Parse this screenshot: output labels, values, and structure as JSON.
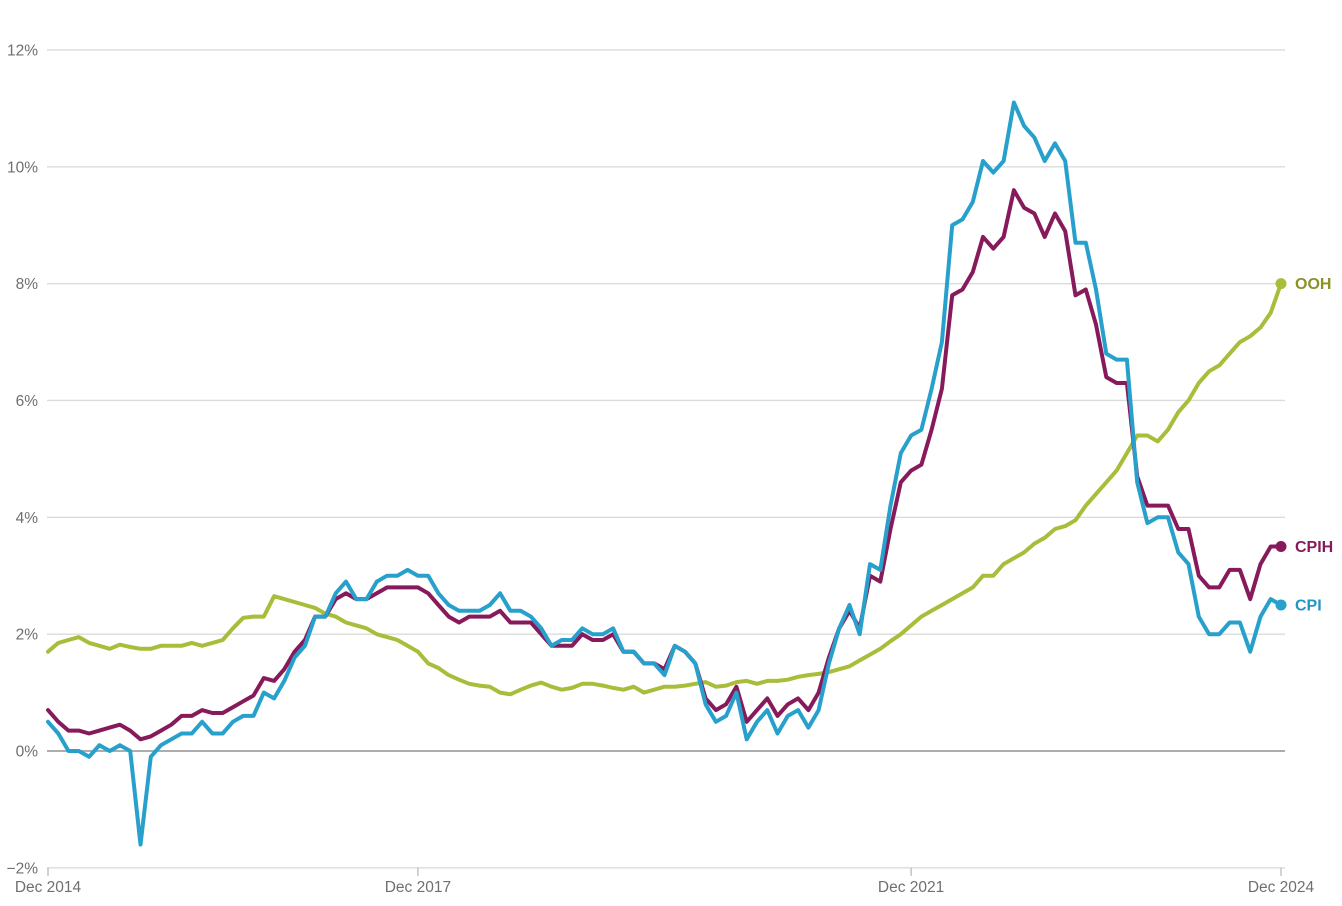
{
  "chart_data": {
    "type": "line",
    "title": "",
    "frequency": "monthly",
    "start_month": "Dec 2014",
    "end_month": "Dec 2024",
    "unit": "%",
    "x_axis": {
      "tick_labels": [
        "Dec 2014",
        "Dec 2017",
        "Dec 2021",
        "Dec 2024"
      ],
      "tick_month_index": [
        0,
        36,
        84,
        120
      ]
    },
    "y_axis": {
      "tick_labels": [
        "−2%",
        "0%",
        "2%",
        "4%",
        "6%",
        "8%",
        "10%",
        "12%"
      ],
      "tick_values": [
        -2,
        0,
        2,
        4,
        6,
        8,
        10,
        12
      ],
      "min": -2,
      "max": 12
    },
    "grid": {
      "line_color": "#dbdbdb",
      "zero_line_color": "#adadad",
      "tick_color": "#c2c2c2",
      "text_color": "#6f6f71",
      "horizontal_gridlines": true,
      "vertical_gridlines": false
    },
    "legend_position": "direct-labels-right",
    "series": [
      {
        "name": "OOH",
        "color": "#a8bd3a",
        "label_color": "#8c9123",
        "end_value": 8.0,
        "values": [
          1.7,
          1.85,
          1.9,
          1.95,
          1.85,
          1.8,
          1.75,
          1.82,
          1.78,
          1.75,
          1.75,
          1.8,
          1.8,
          1.8,
          1.85,
          1.8,
          1.85,
          1.9,
          2.1,
          2.28,
          2.3,
          2.3,
          2.65,
          2.6,
          2.55,
          2.5,
          2.45,
          2.35,
          2.3,
          2.2,
          2.15,
          2.1,
          2.0,
          1.95,
          1.9,
          1.8,
          1.7,
          1.5,
          1.42,
          1.3,
          1.22,
          1.15,
          1.12,
          1.1,
          1.0,
          0.97,
          1.05,
          1.12,
          1.17,
          1.1,
          1.05,
          1.08,
          1.15,
          1.15,
          1.12,
          1.08,
          1.05,
          1.1,
          1.0,
          1.05,
          1.1,
          1.1,
          1.12,
          1.15,
          1.18,
          1.1,
          1.12,
          1.18,
          1.2,
          1.15,
          1.2,
          1.2,
          1.22,
          1.27,
          1.3,
          1.32,
          1.35,
          1.4,
          1.45,
          1.55,
          1.65,
          1.75,
          1.88,
          2.0,
          2.15,
          2.3,
          2.4,
          2.5,
          2.6,
          2.7,
          2.8,
          3.0,
          3.0,
          3.2,
          3.3,
          3.4,
          3.55,
          3.65,
          3.8,
          3.85,
          3.95,
          4.2,
          4.4,
          4.6,
          4.8,
          5.1,
          5.4,
          5.4,
          5.3,
          5.5,
          5.8,
          6.0,
          6.3,
          6.5,
          6.6,
          6.8,
          7.0,
          7.1,
          7.25,
          7.5,
          8.0
        ]
      },
      {
        "name": "CPIH",
        "color": "#871a5b",
        "label_color": "#871a5b",
        "end_value": 3.5,
        "values": [
          0.7,
          0.5,
          0.35,
          0.35,
          0.3,
          0.35,
          0.4,
          0.45,
          0.35,
          0.2,
          0.25,
          0.35,
          0.45,
          0.6,
          0.6,
          0.7,
          0.65,
          0.65,
          0.75,
          0.85,
          0.95,
          1.25,
          1.2,
          1.4,
          1.7,
          1.9,
          2.3,
          2.3,
          2.6,
          2.7,
          2.6,
          2.6,
          2.7,
          2.8,
          2.8,
          2.8,
          2.8,
          2.7,
          2.5,
          2.3,
          2.2,
          2.3,
          2.3,
          2.3,
          2.4,
          2.2,
          2.2,
          2.2,
          2.0,
          1.8,
          1.8,
          1.8,
          2.0,
          1.9,
          1.9,
          2.0,
          1.7,
          1.7,
          1.5,
          1.5,
          1.4,
          1.8,
          1.7,
          1.5,
          0.9,
          0.7,
          0.8,
          1.1,
          0.5,
          0.7,
          0.9,
          0.6,
          0.8,
          0.9,
          0.7,
          1.0,
          1.6,
          2.1,
          2.4,
          2.1,
          3.0,
          2.9,
          3.8,
          4.6,
          4.8,
          4.9,
          5.5,
          6.2,
          7.8,
          7.9,
          8.2,
          8.8,
          8.6,
          8.8,
          9.6,
          9.3,
          9.2,
          8.8,
          9.2,
          8.9,
          7.8,
          7.9,
          7.3,
          6.4,
          6.3,
          6.3,
          4.7,
          4.2,
          4.2,
          4.2,
          3.8,
          3.8,
          3.0,
          2.8,
          2.8,
          3.1,
          3.1,
          2.6,
          3.2,
          3.5,
          3.5
        ]
      },
      {
        "name": "CPI",
        "color": "#27a0cc",
        "label_color": "#2196c4",
        "end_value": 2.5,
        "values": [
          0.5,
          0.3,
          0.0,
          0.0,
          -0.1,
          0.1,
          0.0,
          0.1,
          0.0,
          -1.6,
          -0.1,
          0.1,
          0.2,
          0.3,
          0.3,
          0.5,
          0.3,
          0.3,
          0.5,
          0.6,
          0.6,
          1.0,
          0.9,
          1.2,
          1.6,
          1.8,
          2.3,
          2.3,
          2.7,
          2.9,
          2.6,
          2.6,
          2.9,
          3.0,
          3.0,
          3.1,
          3.0,
          3.0,
          2.7,
          2.5,
          2.4,
          2.4,
          2.4,
          2.5,
          2.7,
          2.4,
          2.4,
          2.3,
          2.1,
          1.8,
          1.9,
          1.9,
          2.1,
          2.0,
          2.0,
          2.1,
          1.7,
          1.7,
          1.5,
          1.5,
          1.3,
          1.8,
          1.7,
          1.5,
          0.8,
          0.5,
          0.6,
          1.0,
          0.2,
          0.5,
          0.7,
          0.3,
          0.6,
          0.7,
          0.4,
          0.7,
          1.5,
          2.1,
          2.5,
          2.0,
          3.2,
          3.1,
          4.2,
          5.1,
          5.4,
          5.5,
          6.2,
          7.0,
          9.0,
          9.1,
          9.4,
          10.1,
          9.9,
          10.1,
          11.1,
          10.7,
          10.5,
          10.1,
          10.4,
          10.1,
          8.7,
          8.7,
          7.9,
          6.8,
          6.7,
          6.7,
          4.6,
          3.9,
          4.0,
          4.0,
          3.4,
          3.2,
          2.3,
          2.0,
          2.0,
          2.2,
          2.2,
          1.7,
          2.3,
          2.6,
          2.5
        ]
      }
    ]
  }
}
